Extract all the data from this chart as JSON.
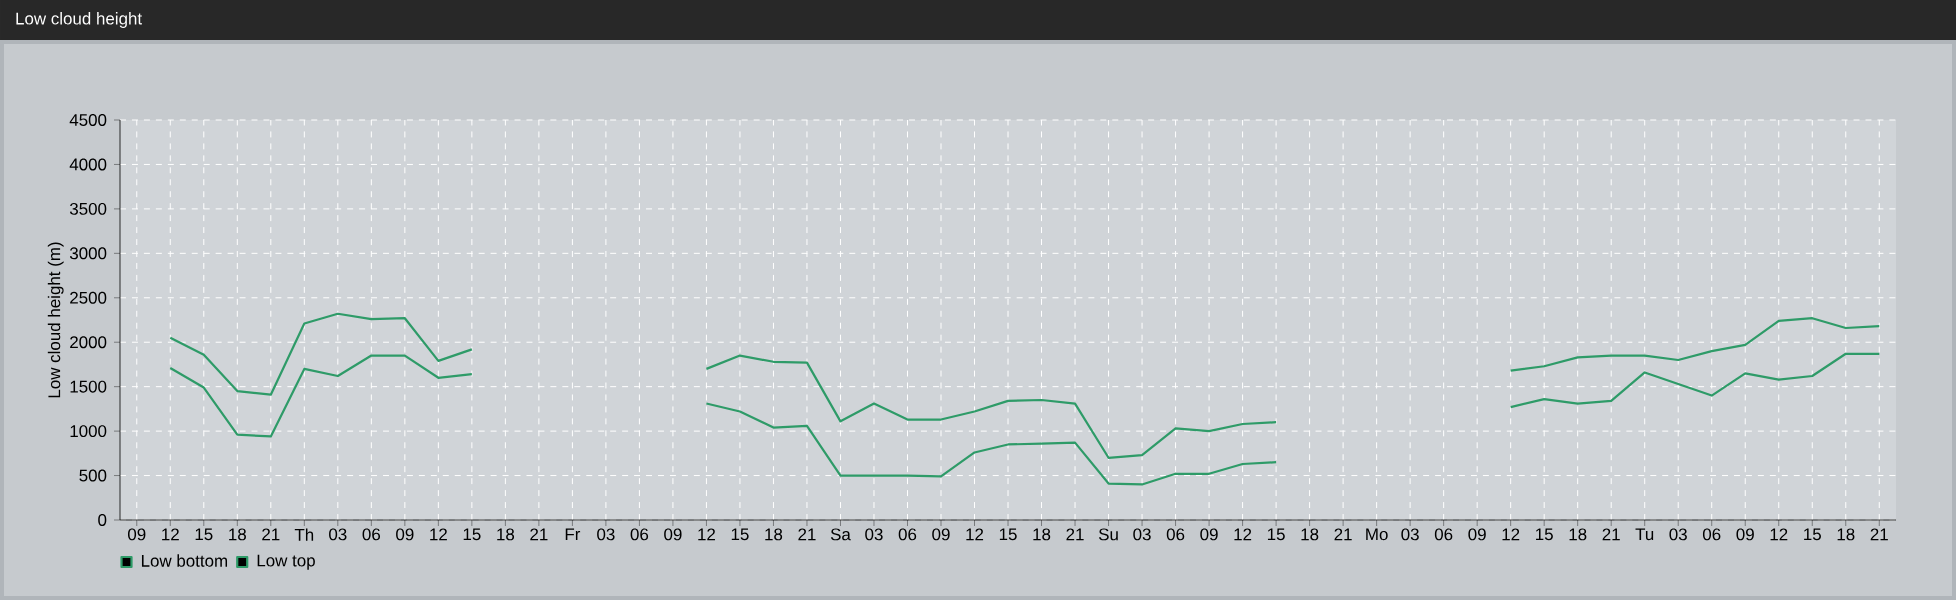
{
  "chart_data": {
    "type": "line",
    "title": "Low cloud height",
    "ylabel": "Low cloud height (m)",
    "categories": [
      "09",
      "12",
      "15",
      "18",
      "21",
      "Th",
      "03",
      "06",
      "09",
      "12",
      "15",
      "18",
      "21",
      "Fr",
      "03",
      "06",
      "09",
      "12",
      "15",
      "18",
      "21",
      "Sa",
      "03",
      "06",
      "09",
      "12",
      "15",
      "18",
      "21",
      "Su",
      "03",
      "06",
      "09",
      "12",
      "15",
      "18",
      "21",
      "Mo",
      "03",
      "06",
      "09",
      "12",
      "15",
      "18",
      "21",
      "Tu",
      "03",
      "06",
      "09",
      "12",
      "15",
      "18",
      "21"
    ],
    "series": [
      {
        "name": "Low bottom",
        "color": "#2e9b68",
        "values": [
          null,
          1710,
          1490,
          960,
          940,
          1700,
          1620,
          1850,
          1850,
          1600,
          1640,
          null,
          null,
          null,
          null,
          null,
          null,
          1310,
          1220,
          1040,
          1060,
          500,
          500,
          500,
          490,
          760,
          850,
          860,
          870,
          410,
          400,
          520,
          520,
          630,
          650,
          null,
          null,
          null,
          null,
          null,
          null,
          1270,
          1360,
          1310,
          1340,
          1660,
          1530,
          1400,
          1650,
          1580,
          1620,
          1870,
          1870
        ]
      },
      {
        "name": "Low top",
        "color": "#2e9b68",
        "values": [
          null,
          2050,
          1860,
          1450,
          1410,
          2210,
          2320,
          2260,
          2270,
          1790,
          1920,
          null,
          null,
          null,
          null,
          null,
          null,
          1700,
          1850,
          1780,
          1770,
          1110,
          1310,
          1130,
          1130,
          1220,
          1340,
          1350,
          1310,
          700,
          730,
          1030,
          1000,
          1080,
          1100,
          null,
          null,
          null,
          null,
          null,
          null,
          1680,
          1730,
          1830,
          1850,
          1850,
          1800,
          1900,
          1970,
          2240,
          2270,
          2160,
          2180
        ]
      }
    ],
    "ylim": [
      0,
      4500
    ],
    "yticks": [
      0,
      500,
      1000,
      1500,
      2000,
      2500,
      3000,
      3500,
      4000,
      4500
    ],
    "grid": true,
    "legend": "bottom left",
    "line_style": "solid"
  }
}
